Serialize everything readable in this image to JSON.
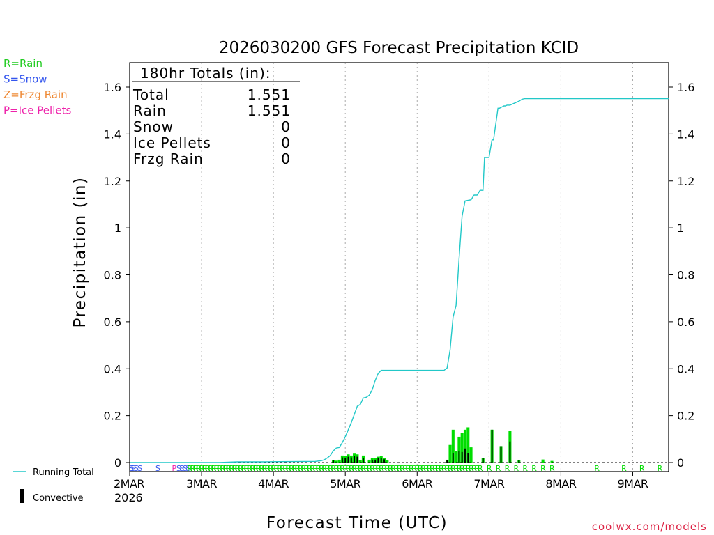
{
  "chart_data": {
    "type": "bar+line",
    "title": "2026030200 GFS Forecast Precipitation KCID",
    "ylabel": "Precipitation (in)",
    "xlabel": "Forecast Time (UTC)",
    "ylim": [
      0,
      1.7
    ],
    "xlim_hours": [
      0,
      180
    ],
    "yticks": [
      0,
      0.2,
      0.4,
      0.6,
      0.8,
      1,
      1.2,
      1.4,
      1.6
    ],
    "ytick_labels": [
      "0",
      "0.2",
      "0.4",
      "0.6",
      "0.8",
      "1",
      "1.2",
      "1.4",
      "1.6"
    ],
    "xticks": [
      {
        "hour": 0,
        "label": "2MAR"
      },
      {
        "hour": 24,
        "label": "3MAR"
      },
      {
        "hour": 48,
        "label": "4MAR"
      },
      {
        "hour": 72,
        "label": "5MAR"
      },
      {
        "hour": 96,
        "label": "6MAR"
      },
      {
        "hour": 120,
        "label": "7MAR"
      },
      {
        "hour": 144,
        "label": "8MAR"
      },
      {
        "hour": 168,
        "label": "9MAR"
      }
    ],
    "year_label": "2026",
    "grid": true,
    "totals_box": {
      "header": "180hr Totals (in):",
      "rows": [
        {
          "label": "Total",
          "value": "1.551"
        },
        {
          "label": "Rain",
          "value": "1.551"
        },
        {
          "label": "Snow",
          "value": "0"
        },
        {
          "label": "Ice Pellets",
          "value": "0"
        },
        {
          "label": "Frzg Rain",
          "value": "0"
        }
      ]
    },
    "type_legend": [
      {
        "text": "R=Rain",
        "color": "#22cc22"
      },
      {
        "text": "S=Snow",
        "color": "#3355ee"
      },
      {
        "text": "Z=Frzg Rain",
        "color": "#ee8833"
      },
      {
        "text": "P=Ice Pellets",
        "color": "#ee22aa"
      }
    ],
    "series": [
      {
        "name": "Running Total",
        "color": "#22c8c8",
        "x": [
          0,
          30,
          36,
          45,
          50,
          62,
          64,
          65,
          66,
          67,
          68,
          69,
          70,
          71,
          72,
          73,
          74,
          75,
          76,
          77,
          78,
          79,
          80,
          81,
          82,
          83,
          84,
          96,
          105,
          106,
          107,
          108,
          109,
          110,
          111,
          112,
          114,
          115,
          116,
          117,
          118,
          118.5,
          120,
          121,
          121.5,
          123,
          123.5,
          125,
          125.5,
          126,
          127,
          130,
          131,
          132,
          133,
          180
        ],
        "values": [
          0,
          0,
          0.003,
          0.003,
          0.004,
          0.005,
          0.008,
          0.012,
          0.02,
          0.03,
          0.05,
          0.062,
          0.064,
          0.085,
          0.11,
          0.14,
          0.17,
          0.205,
          0.24,
          0.248,
          0.275,
          0.278,
          0.287,
          0.31,
          0.35,
          0.38,
          0.393,
          0.393,
          0.393,
          0.403,
          0.48,
          0.62,
          0.67,
          0.87,
          1.05,
          1.115,
          1.12,
          1.14,
          1.14,
          1.16,
          1.16,
          1.3,
          1.3,
          1.375,
          1.375,
          1.51,
          1.51,
          1.52,
          1.52,
          1.523,
          1.523,
          1.54,
          1.548,
          1.551,
          1.551,
          1.551
        ]
      },
      {
        "name": "Rain",
        "color": "#00dd00",
        "bars": [
          {
            "hour": 68,
            "value": 0.01
          },
          {
            "hour": 69,
            "value": 0.008
          },
          {
            "hour": 70,
            "value": 0.012
          },
          {
            "hour": 71,
            "value": 0.03
          },
          {
            "hour": 72,
            "value": 0.028
          },
          {
            "hour": 73,
            "value": 0.035
          },
          {
            "hour": 74,
            "value": 0.03
          },
          {
            "hour": 75,
            "value": 0.038
          },
          {
            "hour": 76,
            "value": 0.035
          },
          {
            "hour": 77,
            "value": 0.01
          },
          {
            "hour": 78,
            "value": 0.03
          },
          {
            "hour": 80,
            "value": 0.012
          },
          {
            "hour": 81,
            "value": 0.02
          },
          {
            "hour": 82,
            "value": 0.018
          },
          {
            "hour": 83,
            "value": 0.025
          },
          {
            "hour": 84,
            "value": 0.028
          },
          {
            "hour": 85,
            "value": 0.02
          },
          {
            "hour": 86,
            "value": 0.01
          },
          {
            "hour": 106,
            "value": 0.012
          },
          {
            "hour": 107,
            "value": 0.075
          },
          {
            "hour": 108,
            "value": 0.14
          },
          {
            "hour": 109,
            "value": 0.05
          },
          {
            "hour": 110,
            "value": 0.11
          },
          {
            "hour": 111,
            "value": 0.125
          },
          {
            "hour": 112,
            "value": 0.14
          },
          {
            "hour": 113,
            "value": 0.15
          },
          {
            "hour": 114,
            "value": 0.065
          },
          {
            "hour": 118,
            "value": 0.02
          },
          {
            "hour": 121,
            "value": 0.14
          },
          {
            "hour": 124,
            "value": 0.07
          },
          {
            "hour": 127,
            "value": 0.135
          },
          {
            "hour": 130,
            "value": 0.01
          },
          {
            "hour": 138,
            "value": 0.013
          },
          {
            "hour": 141,
            "value": 0.007
          }
        ]
      },
      {
        "name": "Convective",
        "color": "#000000",
        "bars": [
          {
            "hour": 68,
            "value": 0.01
          },
          {
            "hour": 71,
            "value": 0.022
          },
          {
            "hour": 72,
            "value": 0.02
          },
          {
            "hour": 73,
            "value": 0.025
          },
          {
            "hour": 74,
            "value": 0.022
          },
          {
            "hour": 75,
            "value": 0.028
          },
          {
            "hour": 76,
            "value": 0.025
          },
          {
            "hour": 78,
            "value": 0.02
          },
          {
            "hour": 81,
            "value": 0.012
          },
          {
            "hour": 82,
            "value": 0.012
          },
          {
            "hour": 83,
            "value": 0.018
          },
          {
            "hour": 84,
            "value": 0.02
          },
          {
            "hour": 85,
            "value": 0.014
          },
          {
            "hour": 106,
            "value": 0.01
          },
          {
            "hour": 108,
            "value": 0.04
          },
          {
            "hour": 110,
            "value": 0.05
          },
          {
            "hour": 111,
            "value": 0.045
          },
          {
            "hour": 112,
            "value": 0.06
          },
          {
            "hour": 113,
            "value": 0.04
          },
          {
            "hour": 118,
            "value": 0.02
          },
          {
            "hour": 121,
            "value": 0.14
          },
          {
            "hour": 124,
            "value": 0.07
          },
          {
            "hour": 127,
            "value": 0.09
          },
          {
            "hour": 130,
            "value": 0.01
          }
        ]
      }
    ],
    "type_markers": [
      {
        "hour": 0.6,
        "letter": "S"
      },
      {
        "hour": 1.2,
        "letter": "S"
      },
      {
        "hour": 2.2,
        "letter": "S"
      },
      {
        "hour": 3.4,
        "letter": "S"
      },
      {
        "hour": 9.4,
        "letter": "S"
      },
      {
        "hour": 14.9,
        "letter": "P"
      },
      {
        "hour": 16.4,
        "letter": "S"
      },
      {
        "hour": 17.4,
        "letter": "S"
      },
      {
        "hour": 18.5,
        "letter": "S"
      },
      {
        "hour": 19.5,
        "letter": "S"
      },
      {
        "hour": 20,
        "letter": "R",
        "to": 117,
        "step": 1
      },
      {
        "hour": 120,
        "letter": "R"
      },
      {
        "hour": 123,
        "letter": "R"
      },
      {
        "hour": 126,
        "letter": "R"
      },
      {
        "hour": 129,
        "letter": "R"
      },
      {
        "hour": 132,
        "letter": "R"
      },
      {
        "hour": 135,
        "letter": "R"
      },
      {
        "hour": 138,
        "letter": "R"
      },
      {
        "hour": 141,
        "letter": "R"
      },
      {
        "hour": 156,
        "letter": "R"
      },
      {
        "hour": 165,
        "letter": "R"
      },
      {
        "hour": 171,
        "letter": "R"
      },
      {
        "hour": 177,
        "letter": "R"
      }
    ]
  },
  "legend": {
    "running_total": "Running Total",
    "convective": "Convective"
  },
  "credit": "coolwx.com/models",
  "colors": {
    "rain": "#00dd00",
    "snow": "#3355ee",
    "frzg": "#ee8833",
    "ice": "#ee22aa",
    "line": "#22c8c8",
    "credit": "#dd2244"
  }
}
